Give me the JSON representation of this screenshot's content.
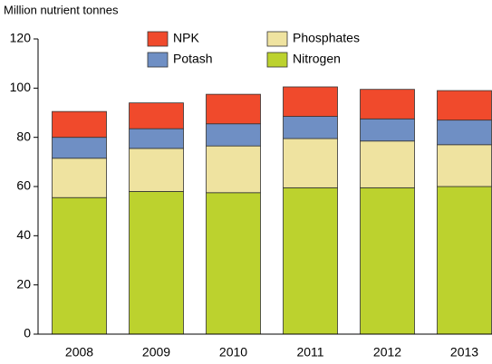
{
  "chart_data": {
    "type": "stacked_bar",
    "y_axis_label": "Million nutrient tonnes",
    "categories": [
      "2008",
      "2009",
      "2010",
      "2011",
      "2012",
      "2013"
    ],
    "series": [
      {
        "name": "Nitrogen",
        "color": "#bcd22e",
        "values": [
          55.5,
          58,
          57.5,
          59.5,
          59.5,
          60
        ]
      },
      {
        "name": "Phosphates",
        "color": "#efe3a0",
        "values": [
          16,
          17.5,
          19,
          20,
          19,
          17
        ]
      },
      {
        "name": "Potash",
        "color": "#6f8fc4",
        "values": [
          8.5,
          8,
          9,
          9,
          9,
          10
        ]
      },
      {
        "name": "NPK",
        "color": "#f04a2c",
        "values": [
          10.5,
          10.5,
          12,
          12,
          12,
          12
        ]
      }
    ],
    "ylim": [
      0,
      120
    ],
    "yticks": [
      0,
      20,
      40,
      60,
      80,
      100,
      120
    ],
    "grid": false
  }
}
